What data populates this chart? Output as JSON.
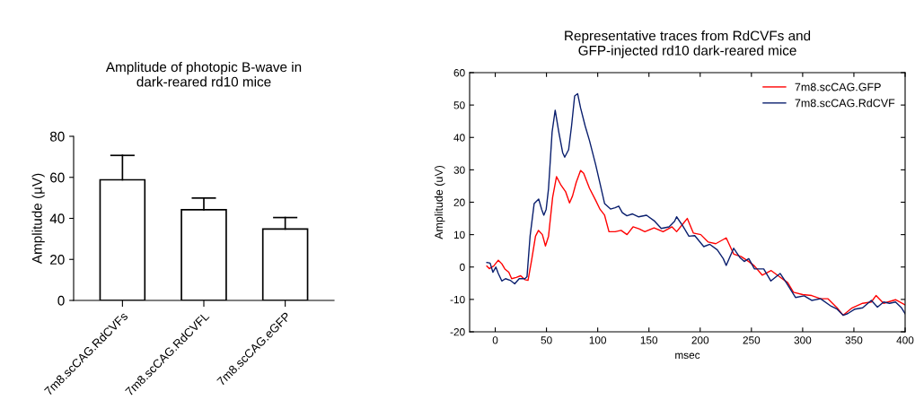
{
  "chart_data": [
    {
      "type": "bar",
      "title": "Amplitude of photopic B-wave in\ndark-reared rd10 mice",
      "ylabel": "Amplitude (µV)",
      "categories": [
        "7m8.scCAG.RdCVFs",
        "7m8.scCAG.RdCVFL",
        "7m8.scCAG.eGFP"
      ],
      "values": [
        58.8,
        44.2,
        34.8
      ],
      "errors": [
        [
          58.8,
          70.7
        ],
        [
          44.2,
          49.9
        ],
        [
          34.8,
          40.4
        ]
      ],
      "color": "#ffffff",
      "ylim": [
        0,
        80
      ],
      "yticks": [
        0,
        20,
        40,
        60,
        80
      ],
      "grid": false,
      "legend": false
    },
    {
      "type": "line",
      "title": "Representative traces from RdCVFs and\nGFP-injected rd10 dark-reared mice",
      "xlabel": "msec",
      "ylabel": "Amplitude (uV)",
      "xlim": [
        -25,
        400
      ],
      "ylim": [
        -20,
        60
      ],
      "xticks": [
        0,
        50,
        100,
        150,
        200,
        250,
        300,
        350,
        400
      ],
      "yticks": [
        -20,
        -10,
        0,
        10,
        20,
        30,
        40,
        50,
        60
      ],
      "grid": false,
      "legend": "top right",
      "marker": "none",
      "line_style": "solid",
      "series": [
        {
          "name": "7m8.scCAG.GFP",
          "color": "#ff0000",
          "x": [
            -8.2,
            -5.8,
            -1.5,
            3,
            6.4,
            9.4,
            13.2,
            16,
            20.5,
            24.8,
            29,
            32,
            35.5,
            39.3,
            42.2,
            46,
            49,
            52,
            56,
            59.8,
            64.3,
            68.6,
            72.5,
            75.4,
            79,
            83.3,
            86.3,
            92,
            98,
            102.3,
            106.7,
            111,
            117,
            122.8,
            128.6,
            134.5,
            140.3,
            146,
            155,
            163.8,
            172.5,
            177,
            187.4,
            193.3,
            200.6,
            207.9,
            215.2,
            225.4,
            232.7,
            240,
            247.4,
            253,
            260.5,
            269.3,
            277,
            285.4,
            291,
            300,
            308.8,
            317.5,
            324.8,
            333.6,
            339.5,
            348.3,
            358.5,
            367,
            371.6,
            379,
            390.6,
            400
          ],
          "values": [
            0.3,
            -0.5,
            0.3,
            2.1,
            1,
            -0.6,
            -1.6,
            -3.6,
            -3.2,
            -2.7,
            -3.9,
            -4.1,
            2.1,
            9.5,
            11.3,
            10,
            6.5,
            9.5,
            21.5,
            27.9,
            25.2,
            23.3,
            19.8,
            21.9,
            26.1,
            29.8,
            28.9,
            24.3,
            20.6,
            17.8,
            16,
            10.9,
            10.9,
            11.3,
            10,
            12.4,
            11.8,
            10.9,
            12.1,
            10.9,
            12.4,
            10.9,
            15,
            10.5,
            10,
            7.7,
            7.2,
            9,
            4,
            3.2,
            1.7,
            0.3,
            -2.5,
            -1.1,
            -2.9,
            -4.8,
            -7.8,
            -8.5,
            -8.8,
            -9.8,
            -9.8,
            -12.6,
            -14.9,
            -12.6,
            -11.2,
            -10.8,
            -8.8,
            -11.2,
            -10.1,
            -11.7
          ]
        },
        {
          "name": "7m8.scCAG.RdCVF",
          "color": "#0a1f6e",
          "x": [
            -8.2,
            -5,
            -2.3,
            0.6,
            3,
            6.4,
            10,
            14.6,
            19,
            23.4,
            29,
            31,
            34,
            38,
            42.4,
            45.3,
            47.4,
            49.7,
            52,
            55.5,
            58.5,
            62,
            65.8,
            67.8,
            71.6,
            74.5,
            77.5,
            80.4,
            83.3,
            87.7,
            92,
            98,
            102,
            106.7,
            112.5,
            117,
            120.5,
            124,
            128.5,
            134,
            140,
            147.6,
            155,
            162,
            169.6,
            175,
            177,
            183,
            189,
            194.7,
            203.5,
            209.4,
            216.7,
            222.5,
            225.4,
            232.7,
            238.6,
            243,
            247.4,
            253,
            262,
            269,
            278,
            284,
            293,
            301.5,
            308.8,
            317.5,
            327.8,
            333.6,
            339.5,
            343.9,
            351,
            358.5,
            367,
            373,
            379,
            384.8,
            390.6,
            396.5,
            400
          ],
          "values": [
            1.4,
            1.2,
            -1.6,
            0,
            -2,
            -4.3,
            -3.6,
            -4.1,
            -5.2,
            -3.6,
            -3.6,
            -3,
            9.5,
            19.6,
            21,
            17.8,
            16,
            17.8,
            24.2,
            41.7,
            48.4,
            41.7,
            35.3,
            33.9,
            36.2,
            43.6,
            52.8,
            53.5,
            49.1,
            43.6,
            39,
            31.6,
            26.1,
            19.6,
            17.9,
            18.3,
            18.8,
            16.8,
            15.8,
            16.4,
            15.5,
            16,
            14.3,
            11.9,
            12.4,
            14.1,
            15.5,
            12.7,
            9.5,
            9.7,
            6.3,
            7,
            5.3,
            2.6,
            0.5,
            5.8,
            3,
            1.7,
            2.6,
            -0.6,
            -0.6,
            -4.3,
            -2,
            -4.8,
            -9.4,
            -8.9,
            -10.3,
            -9.8,
            -12.1,
            -13,
            -14.9,
            -14.4,
            -13,
            -12.6,
            -10.3,
            -12.4,
            -10.8,
            -11.2,
            -10.8,
            -12.6,
            -14.4
          ]
        }
      ]
    }
  ]
}
